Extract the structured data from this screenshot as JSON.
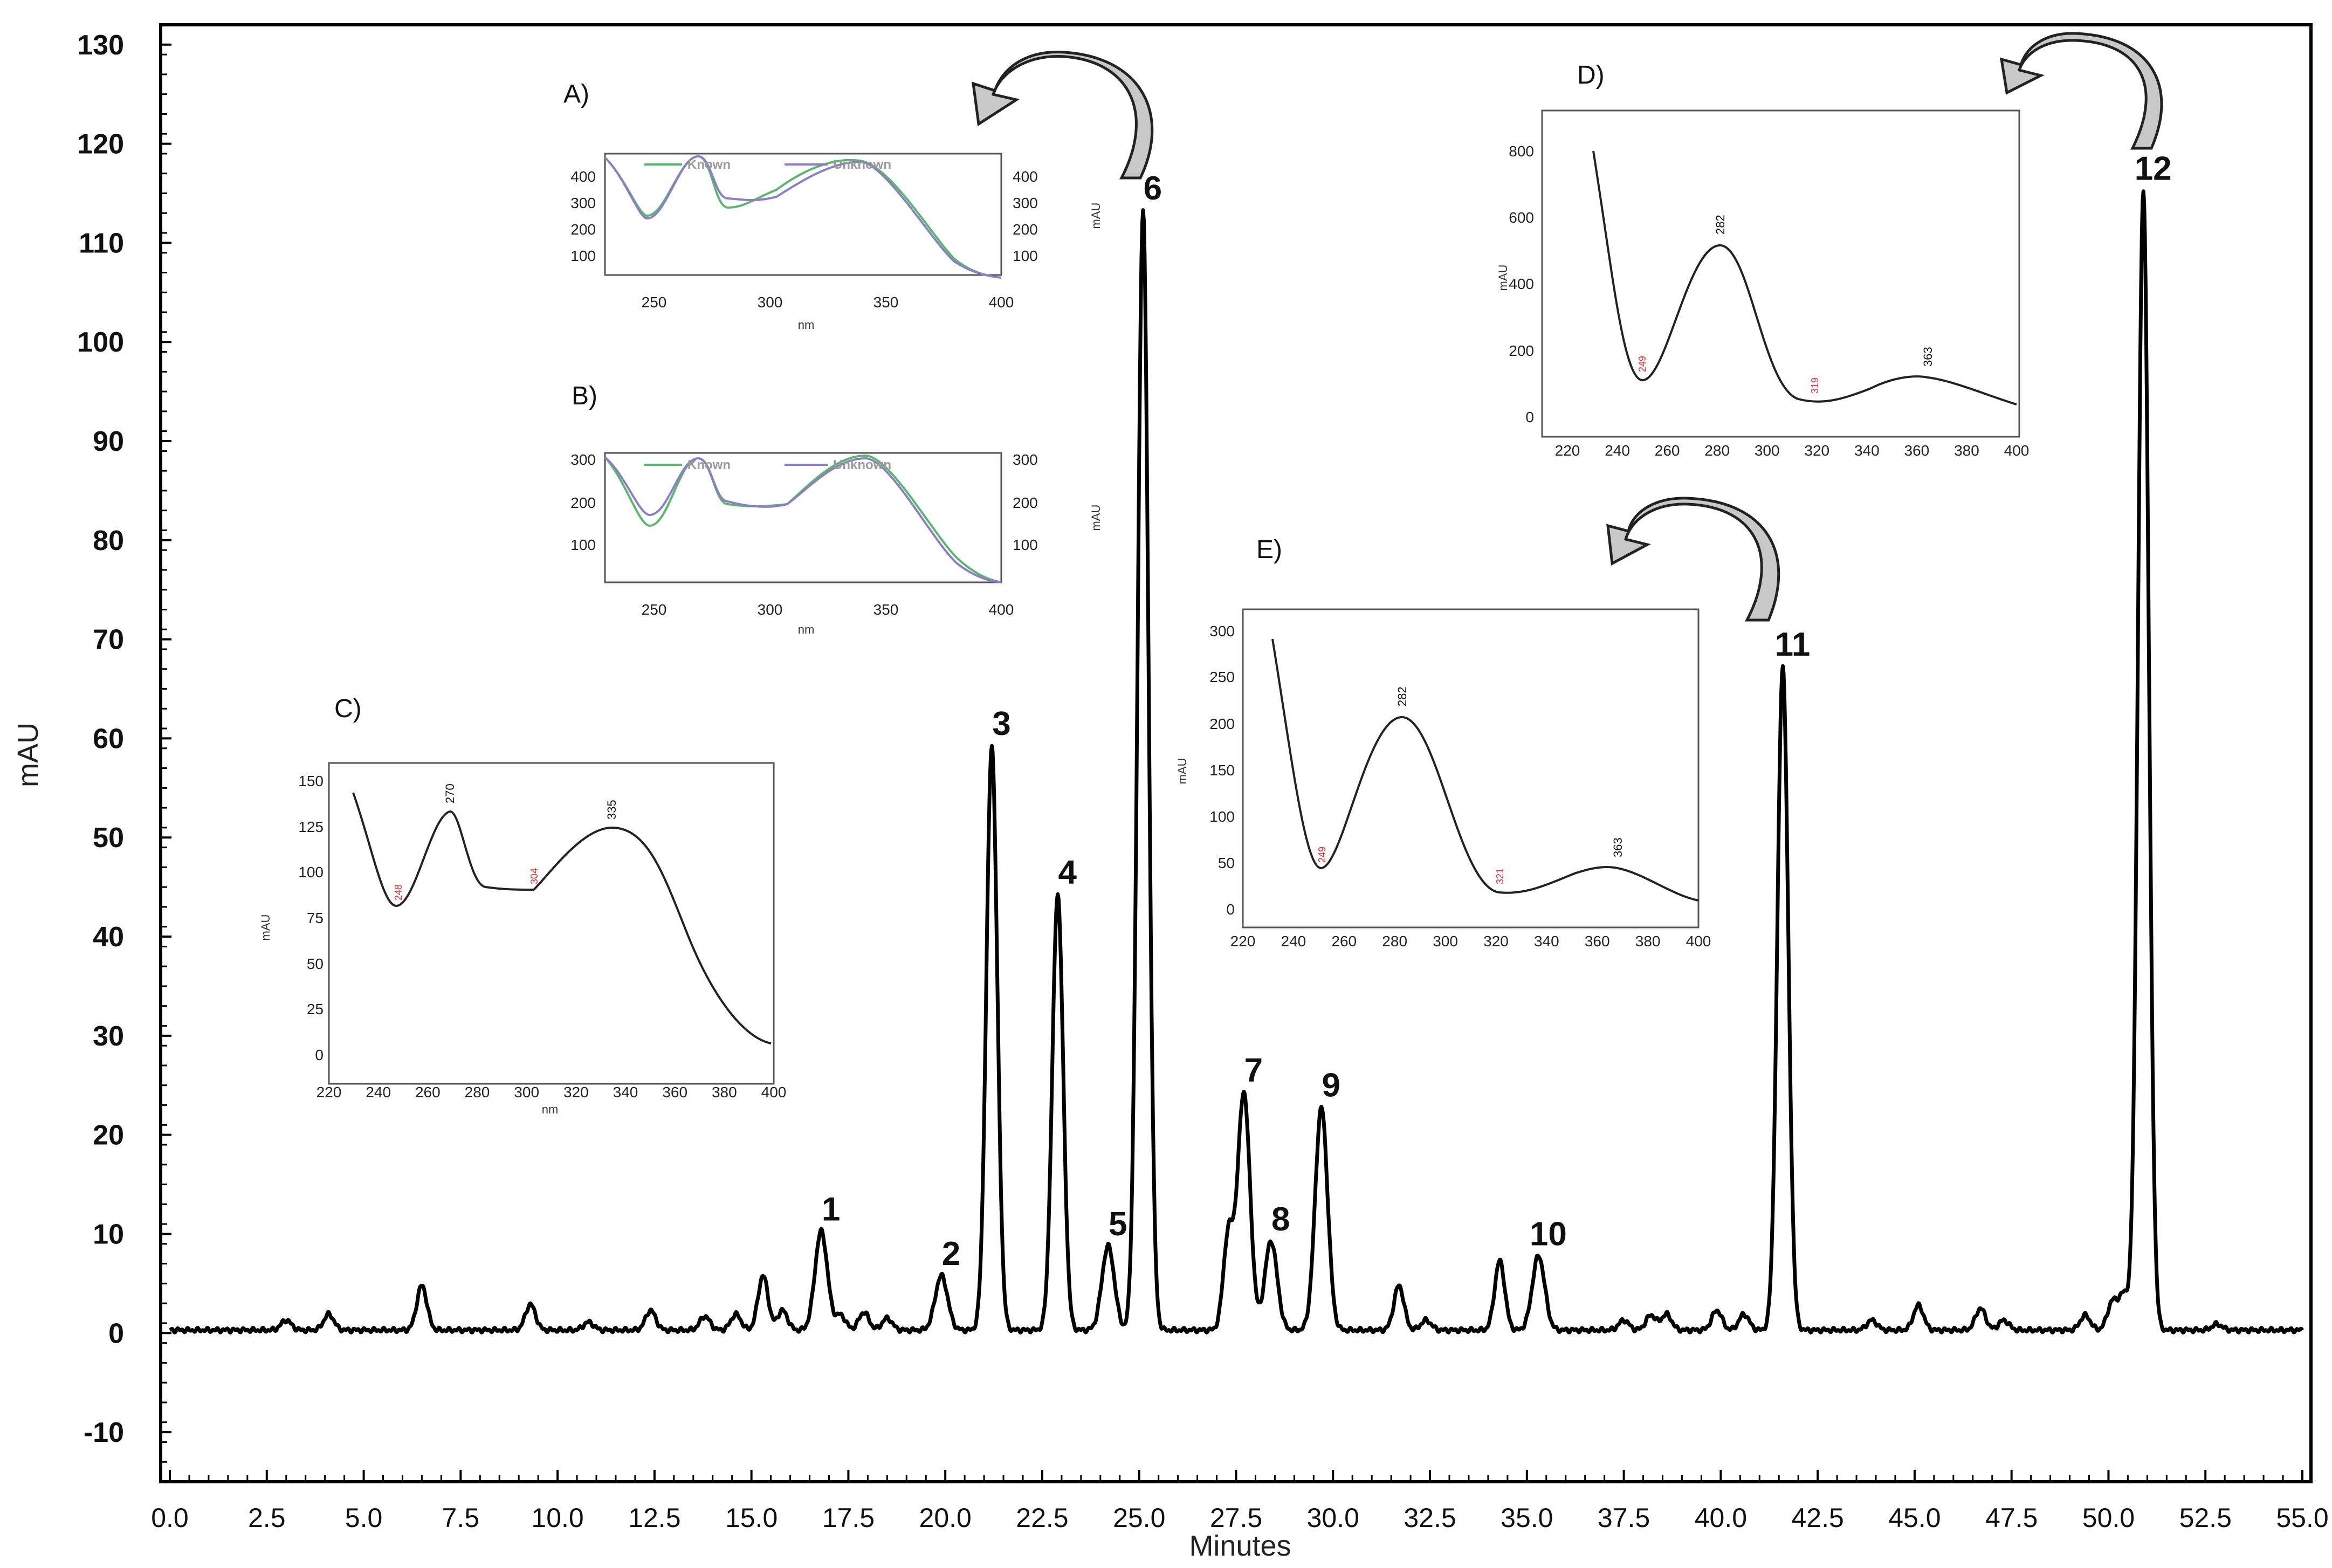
{
  "chart_data": {
    "type": "line",
    "xlabel": "Minutes",
    "ylabel": "mAU",
    "xlim": [
      0,
      55
    ],
    "ylim": [
      -15,
      132
    ],
    "xticks": [
      "0.0",
      "2.5",
      "5.0",
      "7.5",
      "10.0",
      "12.5",
      "15.0",
      "17.5",
      "20.0",
      "22.5",
      "25.0",
      "27.5",
      "30.0",
      "32.5",
      "35.0",
      "37.5",
      "40.0",
      "42.5",
      "45.0",
      "47.5",
      "50.0",
      "52.5",
      "55.0"
    ],
    "yticks": [
      "130",
      "120",
      "110",
      "100",
      "90",
      "80",
      "70",
      "60",
      "50",
      "40",
      "30",
      "20",
      "10",
      "0",
      "-10"
    ],
    "baseline": 0.3,
    "peaks": [
      {
        "label": "1",
        "x": 16.8,
        "y": 10
      },
      {
        "label": "2",
        "x": 19.9,
        "y": 5.5
      },
      {
        "label": "3",
        "x": 21.2,
        "y": 59
      },
      {
        "label": "4",
        "x": 22.9,
        "y": 44
      },
      {
        "label": "5",
        "x": 24.2,
        "y": 8.5
      },
      {
        "label": "6",
        "x": 25.1,
        "y": 113
      },
      {
        "label": "7",
        "x": 27.7,
        "y": 24
      },
      {
        "label": "8",
        "x": 28.4,
        "y": 9
      },
      {
        "label": "9",
        "x": 29.7,
        "y": 22.5
      },
      {
        "label": "10",
        "x": 35.3,
        "y": 7.5
      },
      {
        "label": "11",
        "x": 41.6,
        "y": 67
      },
      {
        "label": "12",
        "x": 50.9,
        "y": 115
      }
    ],
    "minor_peaks": [
      {
        "x": 3.0,
        "y": 1.0
      },
      {
        "x": 4.1,
        "y": 1.6
      },
      {
        "x": 6.5,
        "y": 4.5
      },
      {
        "x": 9.3,
        "y": 2.6
      },
      {
        "x": 10.8,
        "y": 0.8
      },
      {
        "x": 12.4,
        "y": 2.0
      },
      {
        "x": 13.8,
        "y": 1.4
      },
      {
        "x": 14.6,
        "y": 1.6
      },
      {
        "x": 15.3,
        "y": 5.5
      },
      {
        "x": 15.8,
        "y": 2.0
      },
      {
        "x": 17.3,
        "y": 1.5
      },
      {
        "x": 17.9,
        "y": 1.8
      },
      {
        "x": 18.5,
        "y": 1.2
      },
      {
        "x": 27.3,
        "y": 9.5
      },
      {
        "x": 31.7,
        "y": 4.5
      },
      {
        "x": 32.4,
        "y": 1.0
      },
      {
        "x": 34.3,
        "y": 7.0
      },
      {
        "x": 37.5,
        "y": 1.0
      },
      {
        "x": 38.2,
        "y": 1.5
      },
      {
        "x": 38.6,
        "y": 1.6
      },
      {
        "x": 39.9,
        "y": 2.0
      },
      {
        "x": 40.6,
        "y": 1.6
      },
      {
        "x": 43.9,
        "y": 1.0
      },
      {
        "x": 45.1,
        "y": 2.5
      },
      {
        "x": 46.7,
        "y": 2.2
      },
      {
        "x": 47.3,
        "y": 1.0
      },
      {
        "x": 49.4,
        "y": 1.5
      },
      {
        "x": 50.1,
        "y": 2.8
      },
      {
        "x": 50.4,
        "y": 3.5
      },
      {
        "x": 52.8,
        "y": 0.6
      }
    ]
  },
  "insets": {
    "A": {
      "label": "A)",
      "xlabel": "nm",
      "xticks": [
        "250",
        "300",
        "350",
        "400"
      ],
      "yticks": [
        "400",
        "300",
        "200",
        "100"
      ],
      "right_yticks": [
        "400",
        "300",
        "200",
        "100"
      ],
      "right_unit": "mAU",
      "legend": [
        "Known",
        "Unknown"
      ],
      "series_colors": [
        "#57b86a",
        "#8a7fc6"
      ]
    },
    "B": {
      "label": "B)",
      "xlabel": "nm",
      "xticks": [
        "250",
        "300",
        "350",
        "400"
      ],
      "yticks": [
        "300",
        "200",
        "100"
      ],
      "right_yticks": [
        "300",
        "200",
        "100"
      ],
      "right_unit": "mAU",
      "legend": [
        "Known",
        "Unknown"
      ],
      "series_colors": [
        "#57b86a",
        "#8a7fc6"
      ]
    },
    "C": {
      "label": "C)",
      "xlabel": "nm",
      "unit": "mAU",
      "xticks": [
        "220",
        "240",
        "260",
        "280",
        "300",
        "320",
        "340",
        "360",
        "380",
        "400"
      ],
      "yticks": [
        "150",
        "125",
        "100",
        "75",
        "50",
        "25",
        "0"
      ],
      "maxima": [
        "270",
        "335"
      ],
      "minima": [
        "248",
        "304"
      ]
    },
    "D": {
      "label": "D)",
      "unit": "mAU",
      "xticks": [
        "220",
        "240",
        "260",
        "280",
        "300",
        "320",
        "340",
        "360",
        "380",
        "400"
      ],
      "yticks": [
        "800",
        "600",
        "400",
        "200",
        "0"
      ],
      "maxima": [
        "282",
        "363"
      ],
      "minima": [
        "249",
        "319"
      ]
    },
    "E": {
      "label": "E)",
      "unit": "mAU",
      "xticks": [
        "220",
        "240",
        "260",
        "280",
        "300",
        "320",
        "340",
        "360",
        "380",
        "400"
      ],
      "yticks": [
        "300",
        "250",
        "200",
        "150",
        "100",
        "50",
        "0"
      ],
      "maxima": [
        "282",
        "363"
      ],
      "minima": [
        "249",
        "321"
      ]
    }
  },
  "colors": {
    "trace": "#000000",
    "arrow_fill": "#c8c8c8",
    "minimum_label": "#e03030"
  }
}
